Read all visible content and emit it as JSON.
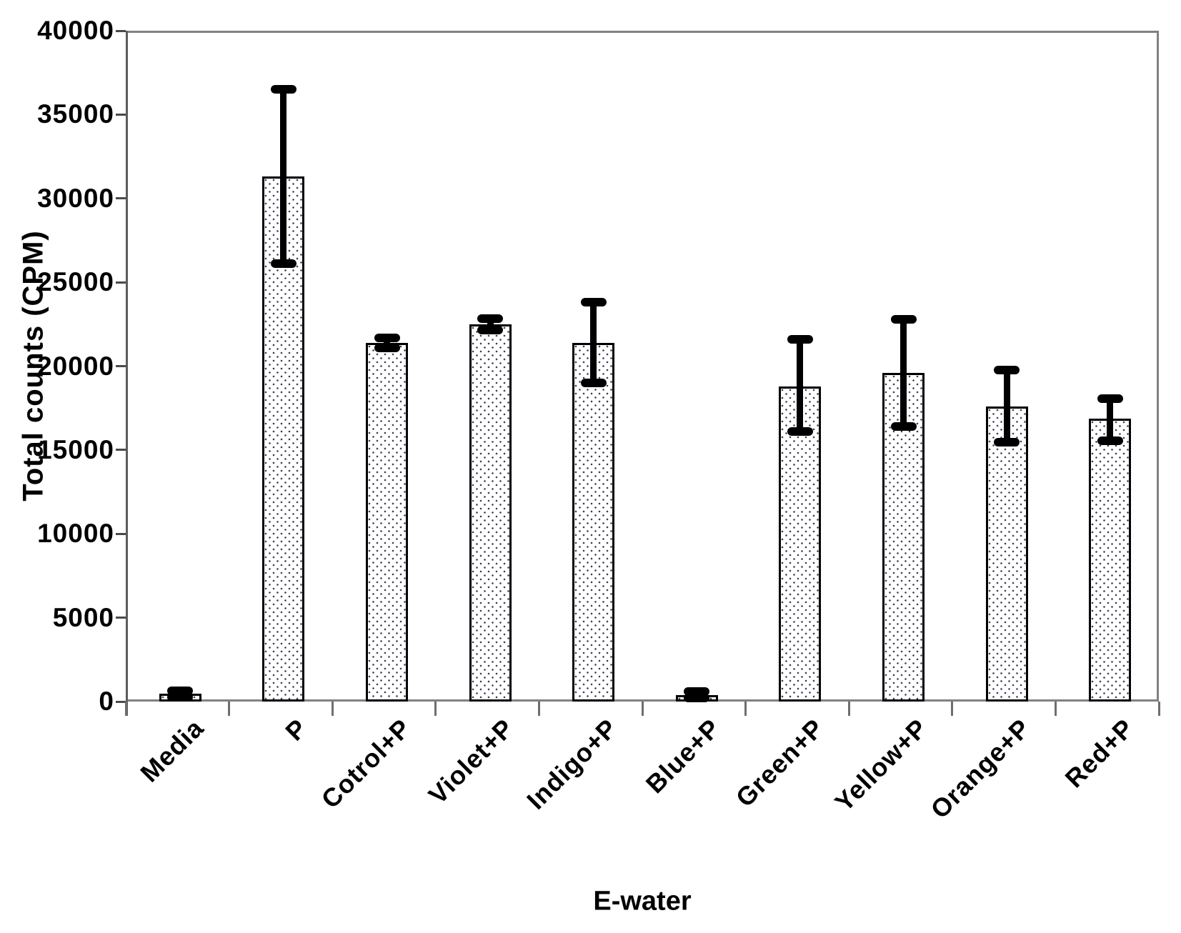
{
  "chart_data": {
    "type": "bar",
    "title": "",
    "xlabel": "E-water",
    "ylabel": "Total counts (CPM)",
    "ylim": [
      0,
      40000
    ],
    "ytick_step": 5000,
    "grid": false,
    "legend": "none",
    "categories": [
      "Media",
      "P",
      "Cotrol+P",
      "Violet+P",
      "Indigo+P",
      "Blue+P",
      "Green+P",
      "Yellow+P",
      "Orange+P",
      "Red+P"
    ],
    "values": [
      450,
      31300,
      21400,
      22500,
      21400,
      400,
      18800,
      19600,
      17600,
      16850
    ],
    "error_high": [
      650,
      36500,
      21700,
      22850,
      23800,
      600,
      21600,
      22800,
      19750,
      18050
    ],
    "error_low": [
      250,
      26100,
      21100,
      22150,
      19000,
      200,
      16100,
      16400,
      15450,
      15550
    ],
    "bar_fill": "#ffffff",
    "bar_pattern": "dotted",
    "bar_border_color": "#000000",
    "error_bar_color": "#000000",
    "axis_border_color": "#818181"
  }
}
